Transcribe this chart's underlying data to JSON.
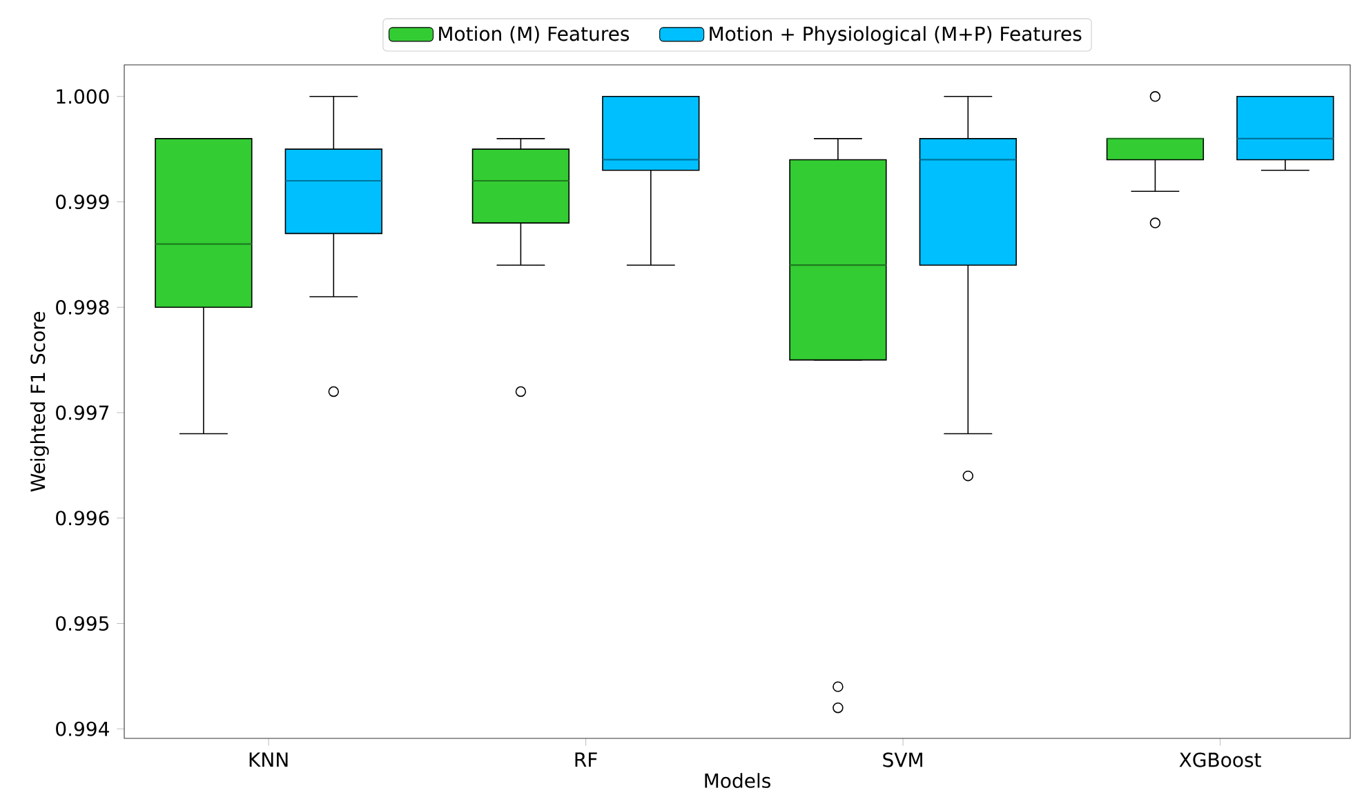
{
  "chart_data": {
    "type": "box",
    "xlabel": "Models",
    "ylabel": "Weighted F1 Score",
    "categories": [
      "KNN",
      "RF",
      "SVM",
      "XGBoost"
    ],
    "series": [
      {
        "name": "Motion (M) Features",
        "color": "#33cc33",
        "boxes": [
          {
            "low": 0.9968,
            "q1": 0.998,
            "median": 0.9986,
            "q3": 0.9996,
            "high": 0.9996
          },
          {
            "low": 0.9984,
            "q1": 0.9988,
            "median": 0.9992,
            "q3": 0.9995,
            "high": 0.9996,
            "outliers": [
              0.9972
            ]
          },
          {
            "low": 0.9975,
            "q1": 0.9975,
            "median": 0.9984,
            "q3": 0.9994,
            "high": 0.9996,
            "outliers": [
              0.9944,
              0.9942
            ]
          },
          {
            "low": 0.9991,
            "q1": 0.9994,
            "median": 0.9996,
            "q3": 0.9996,
            "high": 0.9996,
            "outliers": [
              1.0,
              0.9988
            ]
          }
        ]
      },
      {
        "name": "Motion + Physiological (M+P) Features",
        "color": "#00bfff",
        "boxes": [
          {
            "low": 0.9981,
            "q1": 0.9987,
            "median": 0.9992,
            "q3": 0.9995,
            "high": 1.0,
            "outliers": [
              0.9972
            ]
          },
          {
            "low": 0.9984,
            "q1": 0.9993,
            "median": 0.9994,
            "q3": 1.0,
            "high": 1.0
          },
          {
            "low": 0.9968,
            "q1": 0.9984,
            "median": 0.9994,
            "q3": 0.9996,
            "high": 1.0,
            "outliers": [
              0.9964
            ]
          },
          {
            "low": 0.9993,
            "q1": 0.9994,
            "median": 0.9996,
            "q3": 1.0,
            "high": 1.0
          }
        ]
      }
    ],
    "ylim": [
      0.99391,
      1.0003
    ],
    "yticks": [
      0.994,
      0.995,
      0.996,
      0.997,
      0.998,
      0.999,
      {
        "value": 1.0,
        "label": "1.000"
      }
    ],
    "legend": "top"
  }
}
